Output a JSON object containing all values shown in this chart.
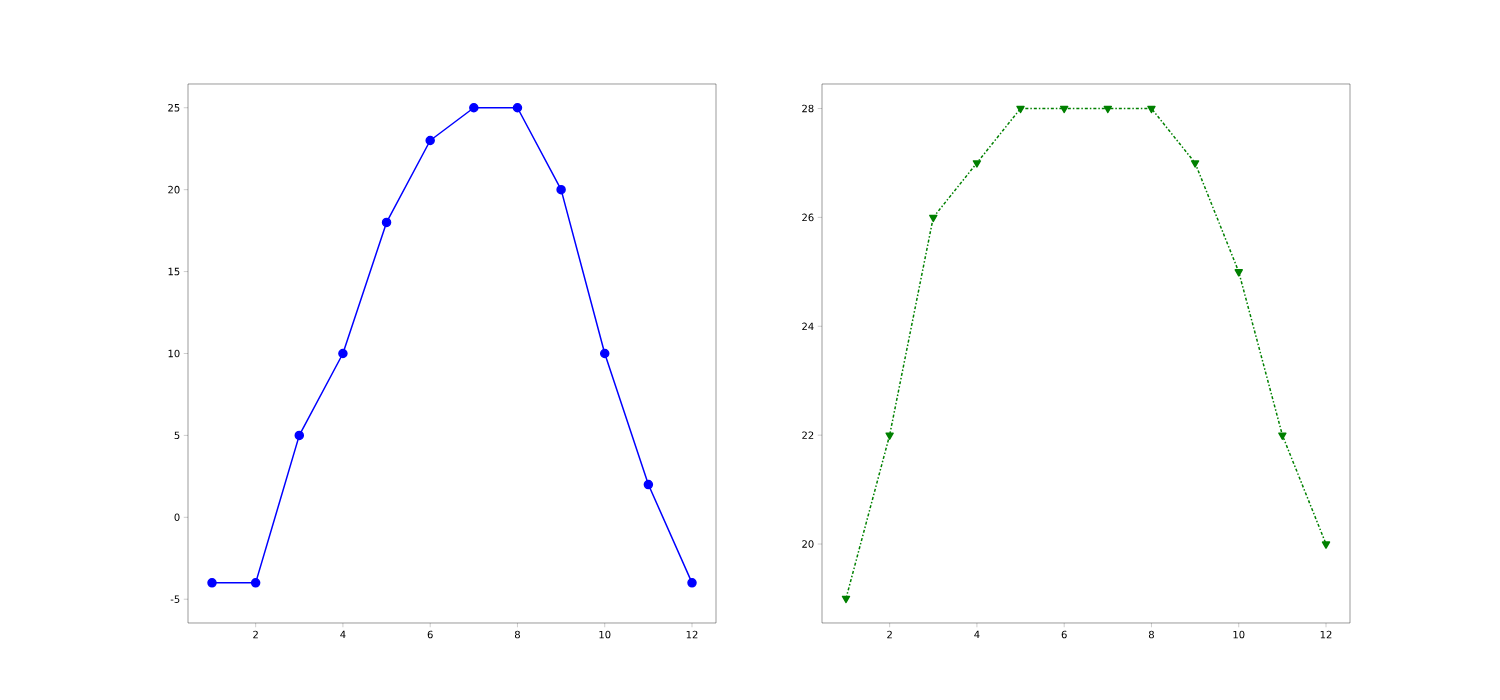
{
  "chart_data": [
    {
      "type": "line",
      "x": [
        1,
        2,
        3,
        4,
        5,
        6,
        7,
        8,
        9,
        10,
        11,
        12
      ],
      "values": [
        -4,
        -4,
        5,
        10,
        18,
        23,
        25,
        25,
        20,
        10,
        2,
        -4
      ],
      "color": "#0000ff",
      "marker": "circle",
      "line_style": "solid",
      "xlim": [
        0.45,
        12.55
      ],
      "ylim": [
        -6.45,
        26.45
      ],
      "xticks": [
        2,
        4,
        6,
        8,
        10,
        12
      ],
      "yticks": [
        -5,
        0,
        5,
        10,
        15,
        20,
        25
      ]
    },
    {
      "type": "line",
      "x": [
        1,
        2,
        3,
        4,
        5,
        6,
        7,
        8,
        9,
        10,
        11,
        12
      ],
      "values": [
        19,
        22,
        26,
        27,
        28,
        28,
        28,
        28,
        27,
        25,
        22,
        20
      ],
      "color": "#008000",
      "marker": "triangle",
      "line_style": "dashdot",
      "xlim": [
        0.45,
        12.55
      ],
      "ylim": [
        18.55,
        28.45
      ],
      "xticks": [
        2,
        4,
        6,
        8,
        10,
        12
      ],
      "yticks": [
        20,
        22,
        24,
        26,
        28
      ]
    }
  ]
}
